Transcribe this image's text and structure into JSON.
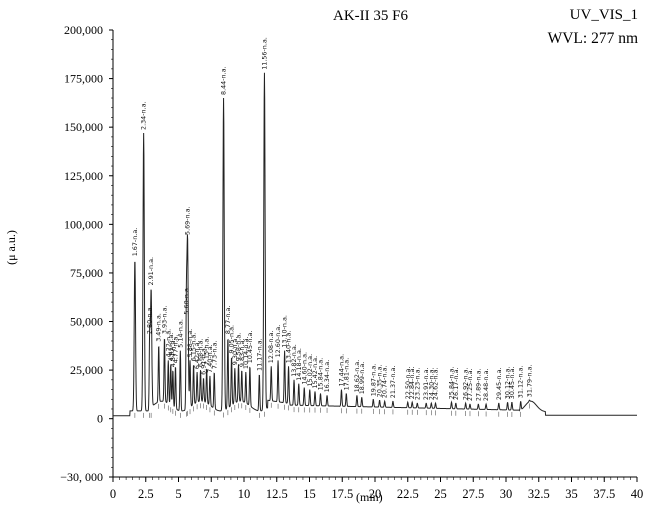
{
  "chart_data": {
    "type": "line",
    "title": "AK-II 35 F6",
    "channel": "UV_VIS_1",
    "wavelength": "WVL: 277 nm",
    "xlabel": "(min)",
    "ylabel": "(μ a.u.)",
    "xlim": [
      0,
      40
    ],
    "ylim": [
      -30000,
      200000
    ],
    "x_ticks": [
      "0",
      "2.5",
      "5",
      "7.5",
      "10",
      "12.5",
      "15",
      "17.5",
      "20",
      "22.5",
      "25",
      "27.5",
      "30",
      "32.5",
      "35",
      "37.5",
      "40"
    ],
    "y_ticks": [
      "200,000",
      "175,000",
      "150,000",
      "125,000",
      "100,000",
      "75,000",
      "50,000",
      "25,000",
      "0",
      "−30, 000"
    ],
    "peaks": [
      {
        "label": "1.67-n.a.",
        "t": 1.67,
        "h": 82000
      },
      {
        "label": "2.34-n.a.",
        "t": 2.34,
        "h": 147000
      },
      {
        "label": "2.80-n.a.",
        "t": 2.8,
        "h": 42000
      },
      {
        "label": "2.91-n.a.",
        "t": 2.91,
        "h": 67000
      },
      {
        "label": "3.49-n.a.",
        "t": 3.49,
        "h": 38000
      },
      {
        "label": "3.93-n.a.",
        "t": 3.93,
        "h": 42000
      },
      {
        "label": "4.22-n.a.",
        "t": 4.22,
        "h": 30000
      },
      {
        "label": "4.41-n.a.",
        "t": 4.41,
        "h": 28000
      },
      {
        "label": "4.57-n.a.",
        "t": 4.57,
        "h": 25000
      },
      {
        "label": "4.77-n.a.",
        "t": 4.77,
        "h": 27000
      },
      {
        "label": "5.14-n.a.",
        "t": 5.14,
        "h": 35000
      },
      {
        "label": "5.60-n.a.",
        "t": 5.6,
        "h": 52000
      },
      {
        "label": "5.69-n.a.",
        "t": 5.69,
        "h": 93000
      },
      {
        "label": "5.88-n.a.",
        "t": 5.88,
        "h": 30000
      },
      {
        "label": "6.15-n.a.",
        "t": 6.15,
        "h": 28000
      },
      {
        "label": "6.42-n.a.",
        "t": 6.42,
        "h": 24000
      },
      {
        "label": "6.68-n.a.",
        "t": 6.68,
        "h": 25000
      },
      {
        "label": "6.91-n.a.",
        "t": 6.91,
        "h": 21000
      },
      {
        "label": "7.15-n.a.",
        "t": 7.15,
        "h": 26000
      },
      {
        "label": "7.40-n.a.",
        "t": 7.4,
        "h": 22000
      },
      {
        "label": "7.73-n.a.",
        "t": 7.73,
        "h": 24000
      },
      {
        "label": "8.44-n.a.",
        "t": 8.44,
        "h": 165000
      },
      {
        "label": "8.77-n.a.",
        "t": 8.77,
        "h": 42000
      },
      {
        "label": "9.05-n.a.",
        "t": 9.05,
        "h": 32000
      },
      {
        "label": "9.30-n.a.",
        "t": 9.3,
        "h": 26000
      },
      {
        "label": "9.58-n.a.",
        "t": 9.58,
        "h": 28000
      },
      {
        "label": "9.83-n.a.",
        "t": 9.83,
        "h": 25000
      },
      {
        "label": "10.14-n.a.",
        "t": 10.14,
        "h": 24000
      },
      {
        "label": "10.45-n.a.",
        "t": 10.45,
        "h": 27000
      },
      {
        "label": "11.17-n.a.",
        "t": 11.17,
        "h": 23000
      },
      {
        "label": "11.56-n.a.",
        "t": 11.56,
        "h": 178000
      },
      {
        "label": "12.08-n.a.",
        "t": 12.08,
        "h": 27000
      },
      {
        "label": "12.60-n.a.",
        "t": 12.6,
        "h": 30000
      },
      {
        "label": "13.10-n.a.",
        "t": 13.1,
        "h": 35000
      },
      {
        "label": "13.40-n.a.",
        "t": 13.4,
        "h": 27000
      },
      {
        "label": "13.82-n.a.",
        "t": 13.82,
        "h": 20000
      },
      {
        "label": "14.18-n.a.",
        "t": 14.18,
        "h": 18000
      },
      {
        "label": "14.60-n.a.",
        "t": 14.6,
        "h": 16000
      },
      {
        "label": "15.02-n.a.",
        "t": 15.02,
        "h": 15000
      },
      {
        "label": "15.42-n.a.",
        "t": 15.42,
        "h": 14000
      },
      {
        "label": "15.84-n.a.",
        "t": 15.84,
        "h": 13000
      },
      {
        "label": "16.34-n.a.",
        "t": 16.34,
        "h": 12000
      },
      {
        "label": "17.44-n.a.",
        "t": 17.44,
        "h": 15000
      },
      {
        "label": "17.81-n.a.",
        "t": 17.81,
        "h": 13000
      },
      {
        "label": "18.62-n.a.",
        "t": 18.62,
        "h": 12000
      },
      {
        "label": "18.99-n.a.",
        "t": 18.99,
        "h": 11000
      },
      {
        "label": "19.87-n.a.",
        "t": 19.87,
        "h": 10000
      },
      {
        "label": "20.35-n.a.",
        "t": 20.35,
        "h": 9500
      },
      {
        "label": "20.74-n.a.",
        "t": 20.74,
        "h": 9000
      },
      {
        "label": "21.37-n.a.",
        "t": 21.37,
        "h": 9000
      },
      {
        "label": "22.50-n.a.",
        "t": 22.5,
        "h": 8500
      },
      {
        "label": "22.84-n.a.",
        "t": 22.84,
        "h": 8500
      },
      {
        "label": "23.23-n.a.",
        "t": 23.23,
        "h": 8000
      },
      {
        "label": "23.91-n.a.",
        "t": 23.91,
        "h": 8000
      },
      {
        "label": "24.30-n.a.",
        "t": 24.3,
        "h": 8000
      },
      {
        "label": "24.62-n.a.",
        "t": 24.62,
        "h": 8000
      },
      {
        "label": "25.84-n.a.",
        "t": 25.84,
        "h": 8500
      },
      {
        "label": "26.17-n.a.",
        "t": 26.17,
        "h": 8000
      },
      {
        "label": "26.92-n.a.",
        "t": 26.92,
        "h": 8000
      },
      {
        "label": "27.25-n.a.",
        "t": 27.25,
        "h": 7500
      },
      {
        "label": "27.89-n.a.",
        "t": 27.89,
        "h": 7500
      },
      {
        "label": "28.48-n.a.",
        "t": 28.48,
        "h": 7500
      },
      {
        "label": "29.45-n.a.",
        "t": 29.45,
        "h": 8000
      },
      {
        "label": "30.12-n.a.",
        "t": 30.12,
        "h": 8500
      },
      {
        "label": "30.45-n.a.",
        "t": 30.45,
        "h": 8500
      },
      {
        "label": "31.12-n.a.",
        "t": 31.12,
        "h": 9000
      },
      {
        "label": "31.79-n.a.",
        "t": 31.79,
        "h": 9500
      }
    ]
  }
}
